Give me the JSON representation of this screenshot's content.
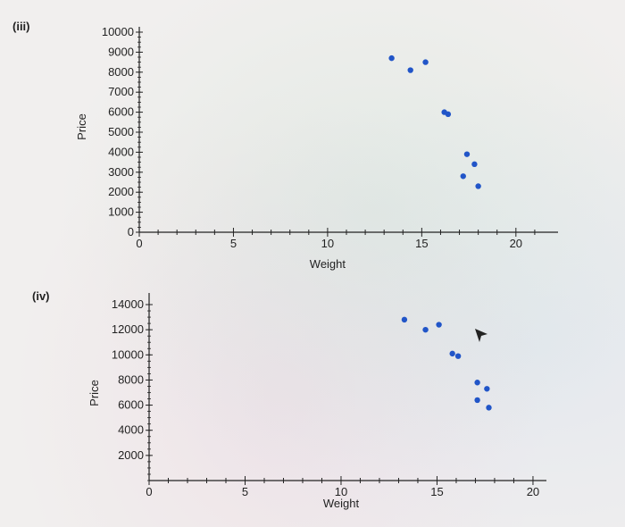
{
  "chart_data": [
    {
      "panel": "(iii)",
      "type": "scatter",
      "xlabel": "Weight",
      "ylabel": "Price",
      "xlim": [
        0,
        22
      ],
      "ylim": [
        0,
        10000
      ],
      "xticks": [
        "0",
        "5",
        "10",
        "15",
        "20"
      ],
      "yticks": [
        "0",
        "1000",
        "2000",
        "3000",
        "4000",
        "5000",
        "6000",
        "7000",
        "8000",
        "9000",
        "10000"
      ],
      "x": [
        13.4,
        14.4,
        15.2,
        16.2,
        16.4,
        17.4,
        17.8,
        17.2,
        18.0
      ],
      "y": [
        8700,
        8100,
        8500,
        6000,
        5900,
        3900,
        3400,
        2800,
        2300
      ],
      "point_color": "#2155c8"
    },
    {
      "panel": "(iv)",
      "type": "scatter",
      "xlabel": "Weight",
      "ylabel": "Price",
      "xlim": [
        0,
        20.7
      ],
      "ylim": [
        0,
        14000
      ],
      "xticks": [
        "0",
        "5",
        "10",
        "15",
        "20"
      ],
      "yticks": [
        "2000",
        "4000",
        "6000",
        "8000",
        "10000",
        "12000",
        "14000"
      ],
      "x": [
        13.3,
        14.4,
        15.1,
        15.8,
        16.1,
        17.1,
        17.6,
        17.1,
        17.7
      ],
      "y": [
        12800,
        12000,
        12400,
        10100,
        9900,
        7800,
        7300,
        6400,
        5800
      ],
      "point_color": "#2155c8"
    }
  ],
  "panels": {
    "first_label": "(iii)",
    "second_label": "(iv)"
  }
}
